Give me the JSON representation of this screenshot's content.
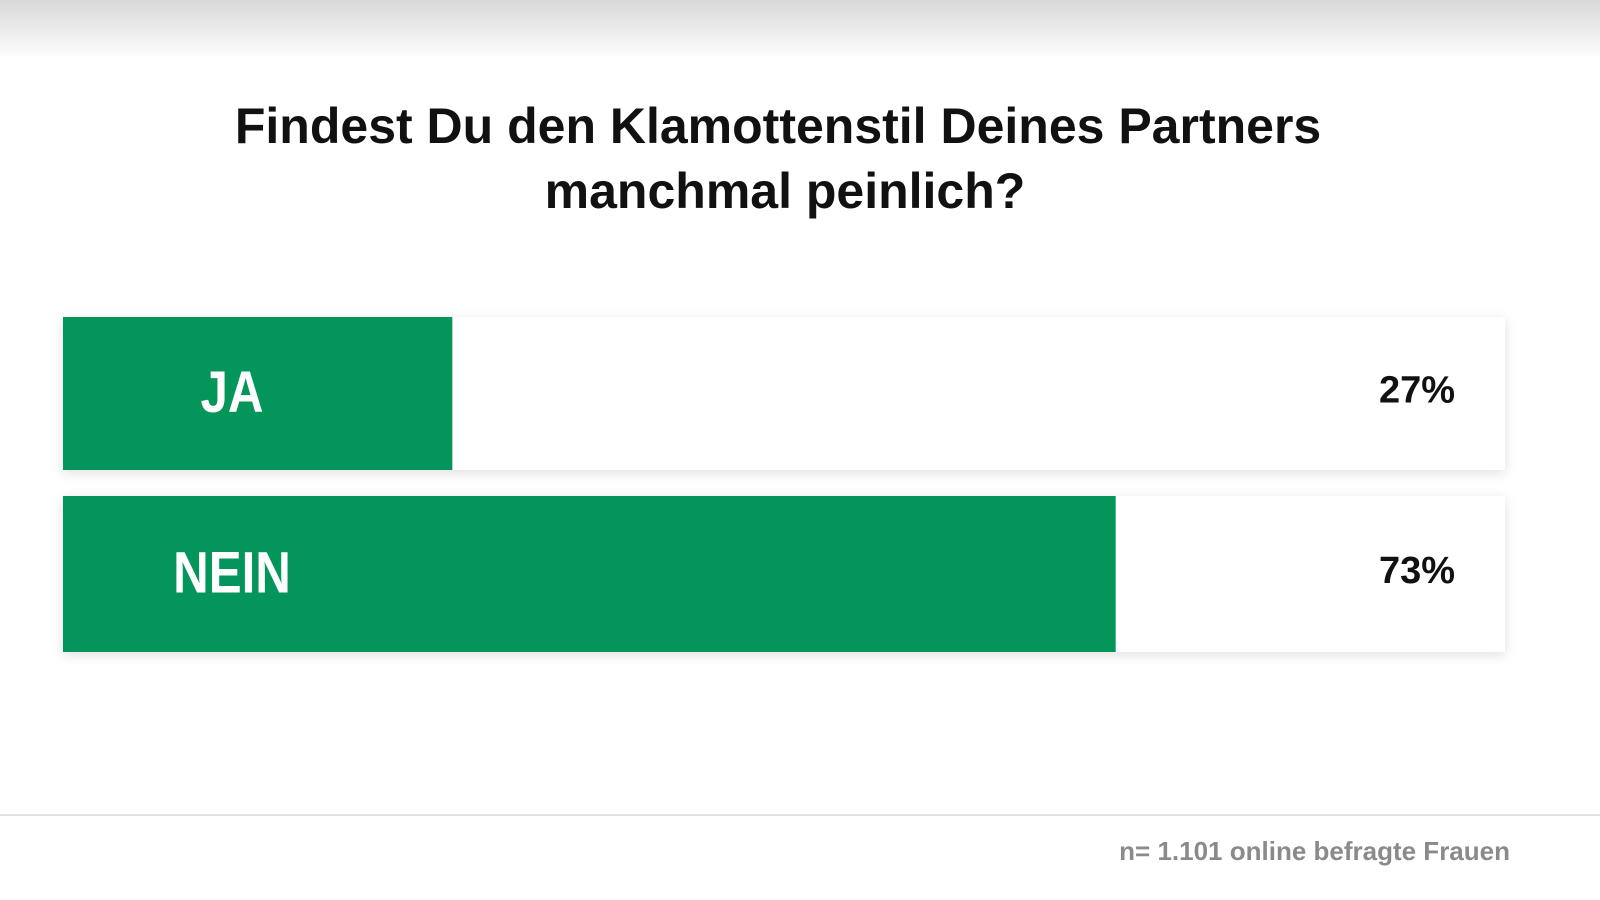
{
  "chart_data": {
    "type": "bar",
    "orientation": "horizontal",
    "title": "Findest Du den Klamottenstil Deines Partners manchmal peinlich?",
    "categories": [
      "JA",
      "NEIN"
    ],
    "values": [
      27,
      73
    ],
    "value_labels": [
      "27%",
      "73%"
    ],
    "color": "#03955a",
    "xlim": [
      0,
      100
    ],
    "note": "n= 1.101 online befragte Frauen"
  }
}
